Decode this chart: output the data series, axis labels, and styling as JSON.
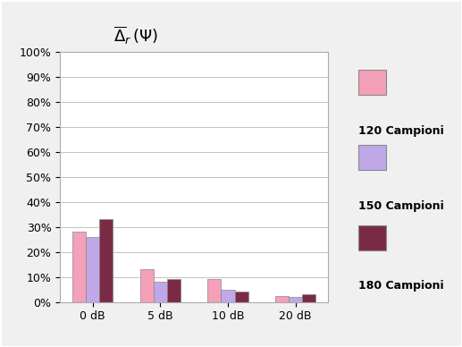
{
  "categories": [
    "0 dB",
    "5 dB",
    "10 dB",
    "20 dB"
  ],
  "series": {
    "120 Campioni": [
      0.28,
      0.13,
      0.09,
      0.025
    ],
    "150 Campioni": [
      0.26,
      0.08,
      0.05,
      0.02
    ],
    "180 Campioni": [
      0.33,
      0.09,
      0.04,
      0.03
    ]
  },
  "colors": {
    "120 Campioni": "#F4A0B8",
    "150 Campioni": "#C0A8E8",
    "180 Campioni": "#7B2A45"
  },
  "title": "$\\overline{\\Delta}_r\\,(\\Psi)$",
  "ylim": [
    0.0,
    1.0
  ],
  "yticks": [
    0.0,
    0.1,
    0.2,
    0.3,
    0.4,
    0.5,
    0.6,
    0.7,
    0.8,
    0.9,
    1.0
  ],
  "ytick_labels": [
    "0%",
    "10%",
    "20%",
    "30%",
    "40%",
    "50%",
    "60%",
    "70%",
    "80%",
    "90%",
    "100%"
  ],
  "background_color": "#F0F0F0",
  "plot_bg_color": "#FFFFFF",
  "border_color": "#A0A0A0",
  "legend_labels": [
    "120 Campioni",
    "150 Campioni",
    "180 Campioni"
  ],
  "bar_width": 0.2,
  "title_fontsize": 13,
  "tick_fontsize": 9,
  "legend_fontsize": 9
}
